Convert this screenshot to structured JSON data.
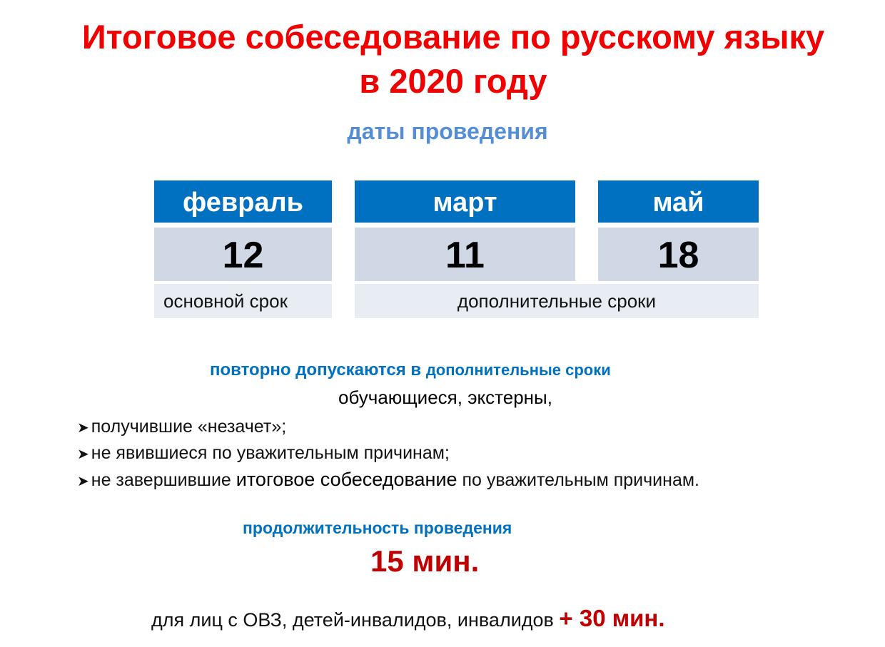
{
  "title": {
    "line1": "Итоговое собеседование по русскому языку",
    "line2": "в 2020 году"
  },
  "subtitle": "даты проведения",
  "dates": [
    {
      "month": "февраль",
      "day": "12"
    },
    {
      "month": "март",
      "day": "11"
    },
    {
      "month": "май",
      "day": "18"
    }
  ],
  "labels": {
    "main": "основной срок",
    "additional": "дополнительные сроки"
  },
  "readmission": {
    "lead": "повторно допускаются в",
    "lead_tail": "дополнительные сроки",
    "who": "обучающиеся, экстерны,",
    "items": [
      {
        "text": "получившие «незачет»;"
      },
      {
        "text": "не явившиеся по уважительным причинам;"
      },
      {
        "pre": "не завершившие ",
        "em": "итоговое собеседование",
        "post": " по уважительным причинам."
      }
    ]
  },
  "duration": {
    "label": "продолжительность проведения",
    "value": "15 мин.",
    "extra_text": "для лиц с ОВЗ, детей-инвалидов, инвалидов",
    "extra_value": "+ 30 мин."
  },
  "colors": {
    "title": "#f00000",
    "accent_blue": "#0070c0",
    "subtitle": "#558ed5",
    "dark_red": "#c00000"
  }
}
